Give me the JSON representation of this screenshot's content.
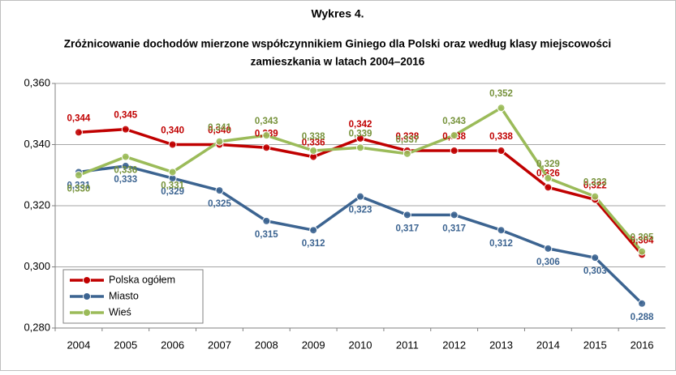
{
  "chart_data": {
    "type": "line",
    "title": "Wykres 4.",
    "subtitle": [
      "Zróżnicowanie dochodów mierzone współczynnikiem Giniego dla Polski oraz według klasy miejscowości",
      "zamieszkania w latach 2004–2016"
    ],
    "categories": [
      "2004",
      "2005",
      "2006",
      "2007",
      "2008",
      "2009",
      "2010",
      "2011",
      "2012",
      "2013",
      "2014",
      "2015",
      "2016"
    ],
    "series": [
      {
        "name": "Polska ogółem",
        "color": "#c00000",
        "label_color": "#c00000",
        "values": [
          0.344,
          0.345,
          0.34,
          0.34,
          0.339,
          0.336,
          0.342,
          0.338,
          0.338,
          0.338,
          0.326,
          0.322,
          0.304
        ],
        "value_labels": [
          "0,344",
          "0,345",
          "0,340",
          "0,340",
          "0,339",
          "0,336",
          "0,342",
          "0,338",
          "0,338",
          "0,338",
          "0,326",
          "0,322",
          "0,304"
        ]
      },
      {
        "name": "Miasto",
        "color": "#3c6491",
        "label_color": "#3c6491",
        "values": [
          0.331,
          0.333,
          0.329,
          0.325,
          0.315,
          0.312,
          0.323,
          0.317,
          0.317,
          0.312,
          0.306,
          0.303,
          0.288
        ],
        "value_labels": [
          "0,331",
          "0,333",
          "0,329",
          "0,325",
          "0,315",
          "0,312",
          "0,323",
          "0,317",
          "0,317",
          "0,312",
          "0,306",
          "0,303",
          "0,288"
        ]
      },
      {
        "name": "Wieś",
        "color": "#9bbb59",
        "label_color": "#77933c",
        "values": [
          0.33,
          0.336,
          0.331,
          0.341,
          0.343,
          0.338,
          0.339,
          0.337,
          0.343,
          0.352,
          0.329,
          0.323,
          0.305
        ],
        "value_labels": [
          "0,330",
          "0,336",
          "0,331",
          "0,341",
          "0,343",
          "0,338",
          "0,339",
          "0,337",
          "0,343",
          "0,352",
          "0,329",
          "0,323",
          "0,305"
        ]
      }
    ],
    "ylim": [
      0.28,
      0.36
    ],
    "yticks": [
      {
        "value": 0.28,
        "label": "0,280"
      },
      {
        "value": 0.3,
        "label": "0,300"
      },
      {
        "value": 0.32,
        "label": "0,320"
      },
      {
        "value": 0.34,
        "label": "0,340"
      },
      {
        "value": 0.36,
        "label": "0,360"
      }
    ],
    "grid": true,
    "legend": "lower left"
  }
}
